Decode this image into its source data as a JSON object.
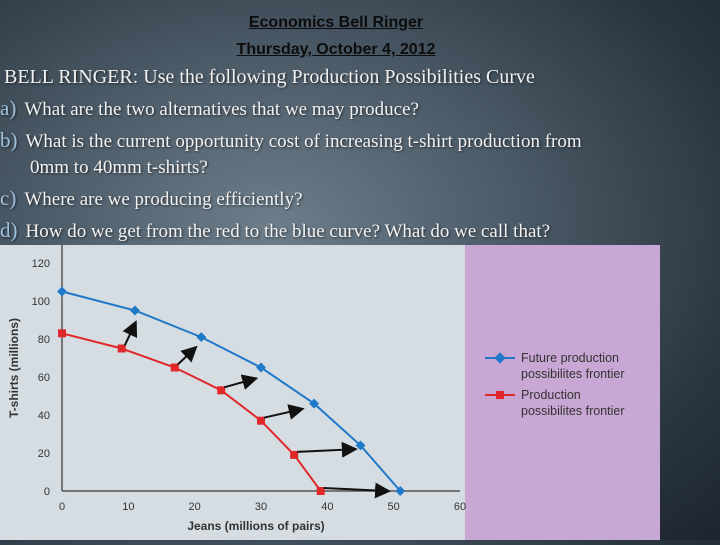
{
  "header": {
    "line1": "Economics Bell Ringer",
    "line2": "Thursday, October 4, 2012"
  },
  "prompt": "BELL RINGER:  Use the following Production Possibilities Curve",
  "questions": [
    {
      "letter": "a)",
      "text": "What are the two alternatives that we may produce?"
    },
    {
      "letter": "b)",
      "text": "What is the current opportunity cost of increasing t-shirt production from",
      "continuation": "0mm to 40mm t-shirts?"
    },
    {
      "letter": "c)",
      "text": "Where are we producing efficiently?"
    },
    {
      "letter": "d)",
      "text": "How do we get from the red to the blue curve?  What do we call that?"
    }
  ],
  "colors": {
    "panel_outer": "#d5dde3",
    "panel_inner": "#c9a7d4",
    "future_series": "#1f78c8",
    "current_series": "#e0282a",
    "arrow": "#111111"
  },
  "chart_data": {
    "type": "line",
    "xlabel": "Jeans (millions of pairs)",
    "ylabel": "T-shirts (millions)",
    "xlim": [
      0,
      60
    ],
    "ylim": [
      0,
      120
    ],
    "xticks": [
      "0",
      "10",
      "20",
      "30",
      "40",
      "50",
      "60"
    ],
    "yticks": [
      "0",
      "20",
      "40",
      "60",
      "80",
      "100",
      "120"
    ],
    "grid": false,
    "legend_position": "right",
    "series": [
      {
        "name": "Future production possibilites frontier",
        "color": "#1f78c8",
        "marker": "diamond",
        "x": [
          0,
          11,
          21,
          30,
          38,
          45,
          51
        ],
        "y": [
          105,
          95,
          81,
          65,
          46,
          24,
          0
        ]
      },
      {
        "name": "Production possibilites frontier",
        "color": "#e0282a",
        "marker": "square",
        "x": [
          0,
          9,
          17,
          24,
          30,
          35,
          39
        ],
        "y": [
          83,
          75,
          65,
          53,
          37,
          19,
          0
        ]
      }
    ],
    "arrows": [
      {
        "from": [
          9,
          75
        ],
        "to": [
          11,
          88
        ]
      },
      {
        "from": [
          17,
          65
        ],
        "to": [
          20,
          75
        ]
      },
      {
        "from": [
          24,
          53
        ],
        "to": [
          29,
          59
        ]
      },
      {
        "from": [
          30,
          37
        ],
        "to": [
          36,
          43
        ]
      },
      {
        "from": [
          35,
          19
        ],
        "to": [
          44,
          22
        ]
      },
      {
        "from": [
          39,
          0
        ],
        "to": [
          49,
          0
        ]
      }
    ]
  }
}
